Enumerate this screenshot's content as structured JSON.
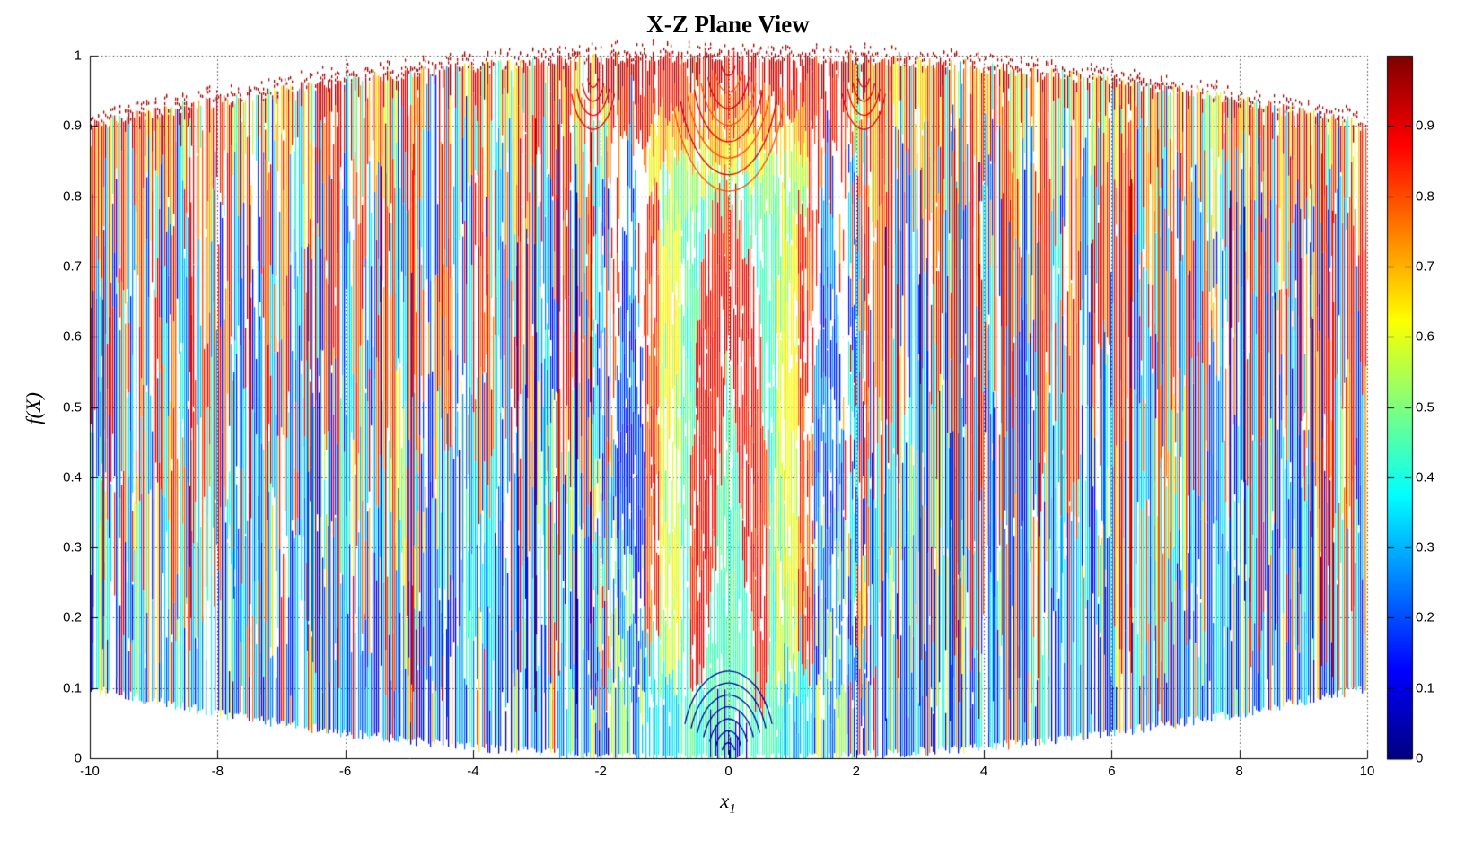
{
  "figure": {
    "title": "X-Z Plane View",
    "background": "#ffffff"
  },
  "axes": {
    "xlabel_base": "x",
    "xlabel_sub": "1",
    "ylabel": "f(X)",
    "xlim": [
      -10,
      10
    ],
    "ylim": [
      0,
      1
    ],
    "xticks": [
      -10,
      -8,
      -6,
      -4,
      -2,
      0,
      2,
      4,
      6,
      8,
      10
    ],
    "xtick_labels": [
      "-10",
      "-8",
      "-6",
      "-4",
      "-2",
      "0",
      "2",
      "4",
      "6",
      "8",
      "10"
    ],
    "yticks": [
      0,
      0.1,
      0.2,
      0.3,
      0.4,
      0.5,
      0.6,
      0.7,
      0.8,
      0.9,
      1
    ],
    "ytick_labels": [
      "0",
      "0.1",
      "0.2",
      "0.3",
      "0.4",
      "0.5",
      "0.6",
      "0.7",
      "0.8",
      "0.9",
      "1"
    ],
    "grid": true,
    "grid_style": "dotted"
  },
  "colorbar": {
    "min": 0,
    "max": 1,
    "ticks": [
      0,
      0.1,
      0.2,
      0.3,
      0.4,
      0.5,
      0.6,
      0.7,
      0.8,
      0.9
    ],
    "tick_labels": [
      "0",
      "0.1",
      "0.2",
      "0.3",
      "0.4",
      "0.5",
      "0.6",
      "0.7",
      "0.8",
      "0.9"
    ],
    "colormap": "jet",
    "stops": [
      "#00008F",
      "#0000FF",
      "#00FFFF",
      "#80FF80",
      "#FFFF00",
      "#FF0000",
      "#800000"
    ]
  },
  "chart_data": {
    "type": "line",
    "subtype": "3d-mesh-surface-projected-to-XZ-plane",
    "title": "X-Z Plane View",
    "xlabel": "x_1",
    "ylabel": "f(X)",
    "xlim": [
      -10,
      10
    ],
    "ylim": [
      0,
      1
    ],
    "grid": true,
    "legend": "none",
    "colormap": "jet",
    "color_encodes": "f(X) value: 0 = dark blue, 1 = dark red",
    "colorbar_range": [
      0,
      1
    ],
    "colorbar_ticks": [
      0,
      0.1,
      0.2,
      0.3,
      0.4,
      0.5,
      0.6,
      0.7,
      0.8,
      0.9
    ],
    "description": "Side (X-Z plane) view of a highly oscillatory benchmark surface f(x1,x2) on x1 in [-10,10]; thousands of overlapping jet-colored mesh lines form dense vertical strokes spanning a quadratic envelope, red near f=1, blue near f=0, with concentric ring structure about the origin.",
    "envelope": {
      "x": [
        -10,
        -8,
        -6,
        -4,
        -2,
        0,
        2,
        4,
        6,
        8,
        10
      ],
      "top": [
        0.9,
        0.936,
        0.964,
        0.984,
        0.996,
        1.0,
        0.996,
        0.984,
        0.964,
        0.936,
        0.9
      ],
      "bottom": [
        0.1,
        0.064,
        0.036,
        0.016,
        0.004,
        0.0,
        0.004,
        0.016,
        0.036,
        0.064,
        0.1
      ],
      "top_formula": "1 - 0.1*(x/10)^2",
      "bottom_formula": "0.1*(x/10)^2"
    },
    "features": [
      "dark-red ragged cap along the top envelope",
      "yellow/orange band just below the top cap",
      "cyan-and-blue dominated band below z~0.45",
      "dense dark-blue fringe along the bottom envelope",
      "alternating wide warm(red/orange)/cold(blue) stroke clusters in mid heights, clusters widen toward x=0",
      "central red lobe |x|<0.6 from z~0.08 up to z~0.80",
      "cyan wedge at origin and cyan/yellow columns flanking the lobe at |x|~0.6-1.1",
      "tall blue spikes near |x|~1.3-1.8",
      "nested red rings near (0, ~0.95) and nested dark-blue rings near (0, ~0.02)"
    ]
  }
}
